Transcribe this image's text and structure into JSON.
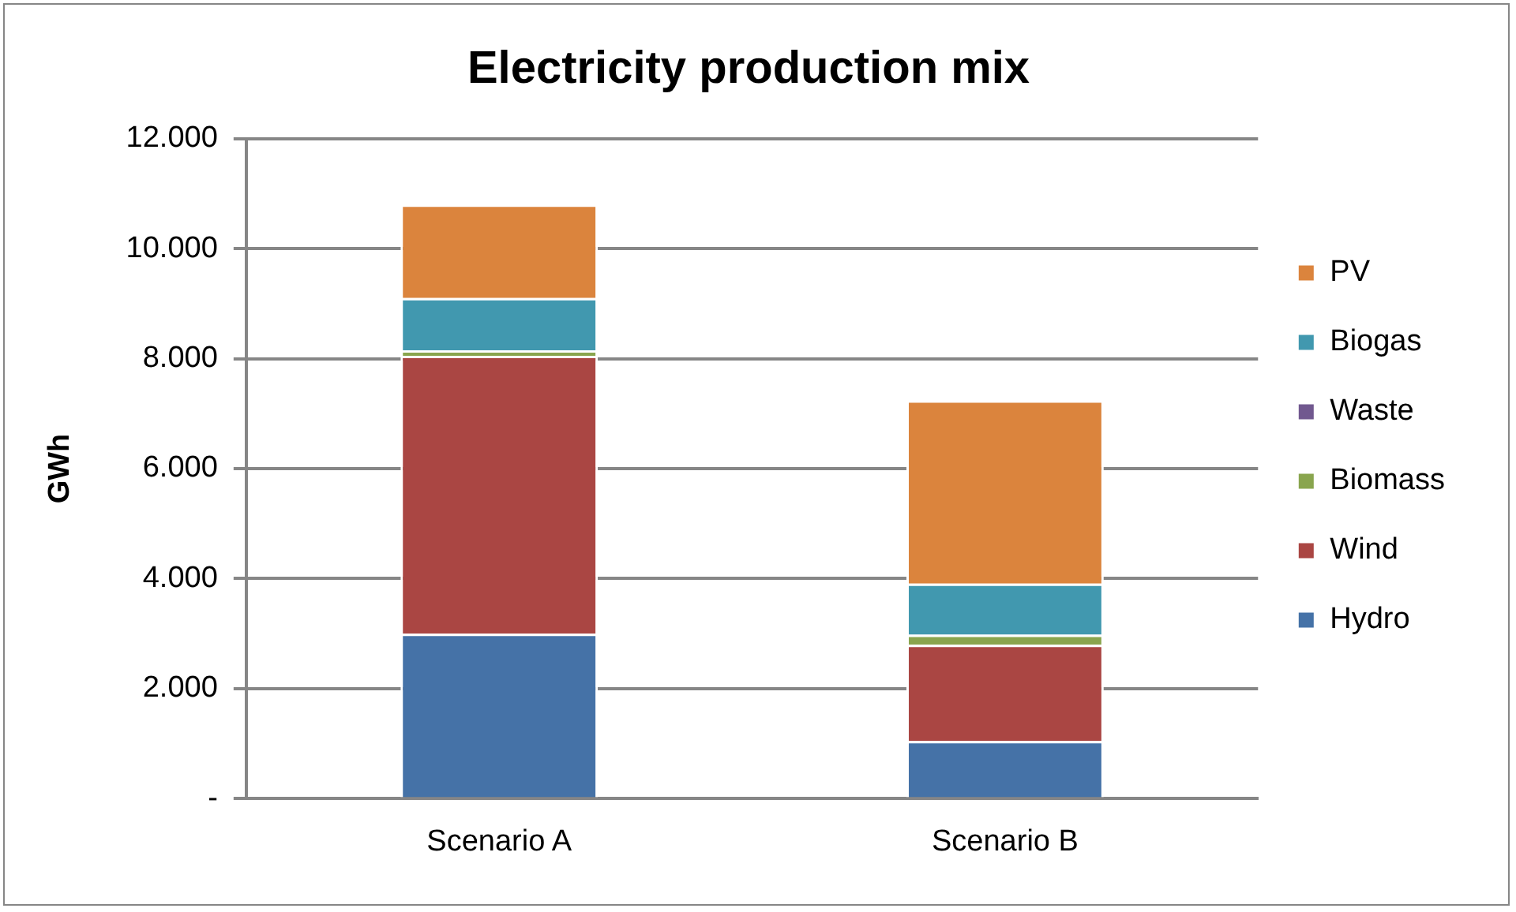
{
  "chart_data": {
    "type": "bar",
    "title": "Electricity production mix",
    "ylabel": "GWh",
    "categories": [
      "Scenario A",
      "Scenario B"
    ],
    "stacked": true,
    "series": [
      {
        "name": "Hydro",
        "color": "#4572a7",
        "values": [
          3000,
          1050
        ]
      },
      {
        "name": "Wind",
        "color": "#aa4643",
        "values": [
          5050,
          1750
        ]
      },
      {
        "name": "Biomass",
        "color": "#89a54e",
        "values": [
          100,
          180
        ]
      },
      {
        "name": "Waste",
        "color": "#71588f",
        "values": [
          0,
          0
        ]
      },
      {
        "name": "Biogas",
        "color": "#4198af",
        "values": [
          950,
          930
        ]
      },
      {
        "name": "PV",
        "color": "#db843d",
        "values": [
          1700,
          3330
        ]
      }
    ],
    "ylim": [
      0,
      12000
    ],
    "yticks": [
      {
        "value": 0,
        "label": "-"
      },
      {
        "value": 2000,
        "label": "2.000"
      },
      {
        "value": 4000,
        "label": "4.000"
      },
      {
        "value": 6000,
        "label": "6.000"
      },
      {
        "value": 8000,
        "label": "8.000"
      },
      {
        "value": 10000,
        "label": "10.000"
      },
      {
        "value": 12000,
        "label": "12.000"
      }
    ],
    "grid": "y",
    "legend": "right"
  }
}
